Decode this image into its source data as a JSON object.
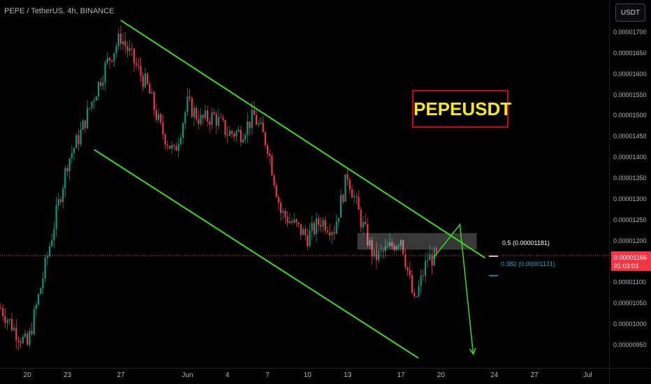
{
  "header": {
    "title": "PEPE / TetherUS, 4h, BINANCE",
    "currency_button": "USDT"
  },
  "overlay": {
    "symbol_label": "PEPEUSDT",
    "fib_05_label": "0.5 (0.00001181)",
    "fib_0382_label": "0.382 (0.00001131)"
  },
  "price_tag": {
    "price": "0.00001166",
    "countdown": "01:03:03"
  },
  "colors": {
    "background": "#000000",
    "up_candle": "#089981",
    "down_candle": "#f23645",
    "channel_line": "#3cdc1e",
    "symbol_box_border": "#d0021b",
    "symbol_text": "#f8e71c",
    "fib_05": "#ffffff",
    "fib_0382": "#22a7c8"
  },
  "chart_data": {
    "type": "candlestick",
    "title": "PEPE / TetherUS, 4h, BINANCE",
    "y_ticks": [
      "0.00001700",
      "0.00001650",
      "0.00001600",
      "0.00001550",
      "0.00001500",
      "0.00001450",
      "0.00001400",
      "0.00001350",
      "0.00001300",
      "0.00001250",
      "0.00001200",
      "0.00001150",
      "0.00001100",
      "0.00001050",
      "0.00001000",
      "0.00000950"
    ],
    "x_ticks": [
      "20",
      "23",
      "27",
      "Jun",
      "4",
      "7",
      "10",
      "13",
      "17",
      "20",
      "24",
      "27",
      "Jul"
    ],
    "ylim": [
      9.2e-06,
      1.75e-05
    ],
    "x_range": [
      "May 18",
      "Jul 1"
    ],
    "current_price": 1.166e-05,
    "fib_levels": [
      {
        "level": 0.5,
        "price": 1.181e-05
      },
      {
        "level": 0.382,
        "price": 1.131e-05
      }
    ],
    "channel": {
      "upper": [
        {
          "date": "May 27",
          "price": 1.73e-05
        },
        {
          "date": "Jun 23",
          "price": 1.16e-05
        }
      ],
      "lower": [
        {
          "date": "May 25",
          "price": 1.42e-05
        },
        {
          "date": "Jun 18",
          "price": 9.2e-06
        }
      ]
    },
    "resistance_zone": {
      "from": "Jun 13",
      "to": "Jun 23",
      "low": 1.18e-05,
      "high": 1.22e-05
    },
    "projection": [
      {
        "date": "Jun 19",
        "price": 1.16e-05
      },
      {
        "date": "Jun 21",
        "price": 1.24e-05
      },
      {
        "date": "Jun 22",
        "price": 9.3e-06
      }
    ],
    "price_path": [
      {
        "date": "May 18",
        "price": 1.04e-05
      },
      {
        "date": "May 19",
        "price": 9.9e-06
      },
      {
        "date": "May 20",
        "price": 9.5e-06
      },
      {
        "date": "May 21",
        "price": 1.09e-05
      },
      {
        "date": "May 22",
        "price": 1.24e-05
      },
      {
        "date": "May 23",
        "price": 1.39e-05
      },
      {
        "date": "May 24",
        "price": 1.46e-05
      },
      {
        "date": "May 25",
        "price": 1.55e-05
      },
      {
        "date": "May 26",
        "price": 1.63e-05
      },
      {
        "date": "May 27",
        "price": 1.69e-05
      },
      {
        "date": "May 28",
        "price": 1.63e-05
      },
      {
        "date": "May 29",
        "price": 1.57e-05
      },
      {
        "date": "May 30",
        "price": 1.47e-05
      },
      {
        "date": "May 31",
        "price": 1.41e-05
      },
      {
        "date": "Jun 1",
        "price": 1.53e-05
      },
      {
        "date": "Jun 2",
        "price": 1.49e-05
      },
      {
        "date": "Jun 3",
        "price": 1.5e-05
      },
      {
        "date": "Jun 4",
        "price": 1.46e-05
      },
      {
        "date": "Jun 5",
        "price": 1.46e-05
      },
      {
        "date": "Jun 6",
        "price": 1.5e-05
      },
      {
        "date": "Jun 7",
        "price": 1.43e-05
      },
      {
        "date": "Jun 8",
        "price": 1.27e-05
      },
      {
        "date": "Jun 9",
        "price": 1.24e-05
      },
      {
        "date": "Jun 10",
        "price": 1.21e-05
      },
      {
        "date": "Jun 11",
        "price": 1.25e-05
      },
      {
        "date": "Jun 12",
        "price": 1.23e-05
      },
      {
        "date": "Jun 13",
        "price": 1.36e-05
      },
      {
        "date": "Jun 14",
        "price": 1.25e-05
      },
      {
        "date": "Jun 15",
        "price": 1.16e-05
      },
      {
        "date": "Jun 16",
        "price": 1.18e-05
      },
      {
        "date": "Jun 17",
        "price": 1.21e-05
      },
      {
        "date": "Jun 18",
        "price": 1.05e-05
      },
      {
        "date": "Jun 19",
        "price": 1.16e-05
      }
    ]
  }
}
